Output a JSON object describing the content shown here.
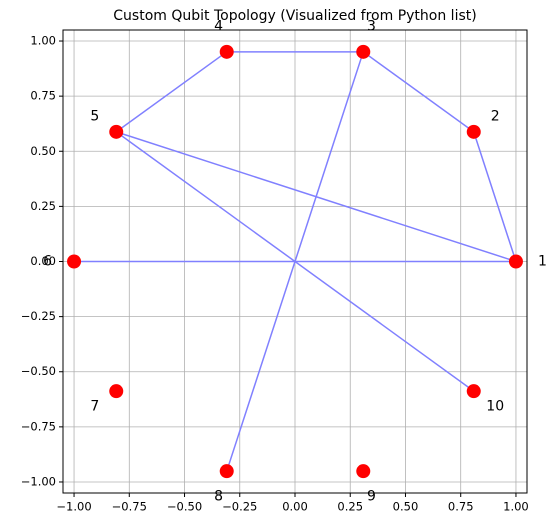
{
  "chart_data": {
    "type": "network",
    "title": "Custom Qubit Topology (Visualized from Python list)",
    "nodes": [
      {
        "label": "1",
        "x": 1.0,
        "y": 0.0
      },
      {
        "label": "2",
        "x": 0.809,
        "y": 0.588
      },
      {
        "label": "3",
        "x": 0.309,
        "y": 0.951
      },
      {
        "label": "4",
        "x": -0.309,
        "y": 0.951
      },
      {
        "label": "5",
        "x": -0.809,
        "y": 0.588
      },
      {
        "label": "6",
        "x": -1.0,
        "y": 0.0
      },
      {
        "label": "7",
        "x": -0.809,
        "y": -0.588
      },
      {
        "label": "8",
        "x": -0.309,
        "y": -0.951
      },
      {
        "label": "9",
        "x": 0.309,
        "y": -0.951
      },
      {
        "label": "10",
        "x": 0.809,
        "y": -0.588
      }
    ],
    "edges": [
      [
        1,
        2
      ],
      [
        2,
        3
      ],
      [
        3,
        4
      ],
      [
        4,
        5
      ],
      [
        5,
        1
      ],
      [
        5,
        10
      ],
      [
        6,
        1
      ],
      [
        3,
        8
      ]
    ],
    "node_color": "#ff0000",
    "edge_color": "#8080ff",
    "xlim": [
      -1.05,
      1.05
    ],
    "ylim": [
      -1.05,
      1.05
    ],
    "xticks": [
      {
        "value": -1,
        "label": "−1.00"
      },
      {
        "value": -0.75,
        "label": "−0.75"
      },
      {
        "value": -0.5,
        "label": "−0.50"
      },
      {
        "value": -0.25,
        "label": "−0.25"
      },
      {
        "value": 0,
        "label": "0.00"
      },
      {
        "value": 0.25,
        "label": "0.25"
      },
      {
        "value": 0.5,
        "label": "0.50"
      },
      {
        "value": 0.75,
        "label": "0.75"
      },
      {
        "value": 1,
        "label": "1.00"
      }
    ],
    "yticks": [
      {
        "value": -1,
        "label": "−1.00"
      },
      {
        "value": -0.75,
        "label": "−0.75"
      },
      {
        "value": -0.5,
        "label": "−0.50"
      },
      {
        "value": -0.25,
        "label": "−0.25"
      },
      {
        "value": 0,
        "label": "0.00"
      },
      {
        "value": 0.25,
        "label": "0.25"
      },
      {
        "value": 0.5,
        "label": "0.50"
      },
      {
        "value": 0.75,
        "label": "0.75"
      },
      {
        "value": 1,
        "label": "1.00"
      }
    ],
    "grid": true
  }
}
